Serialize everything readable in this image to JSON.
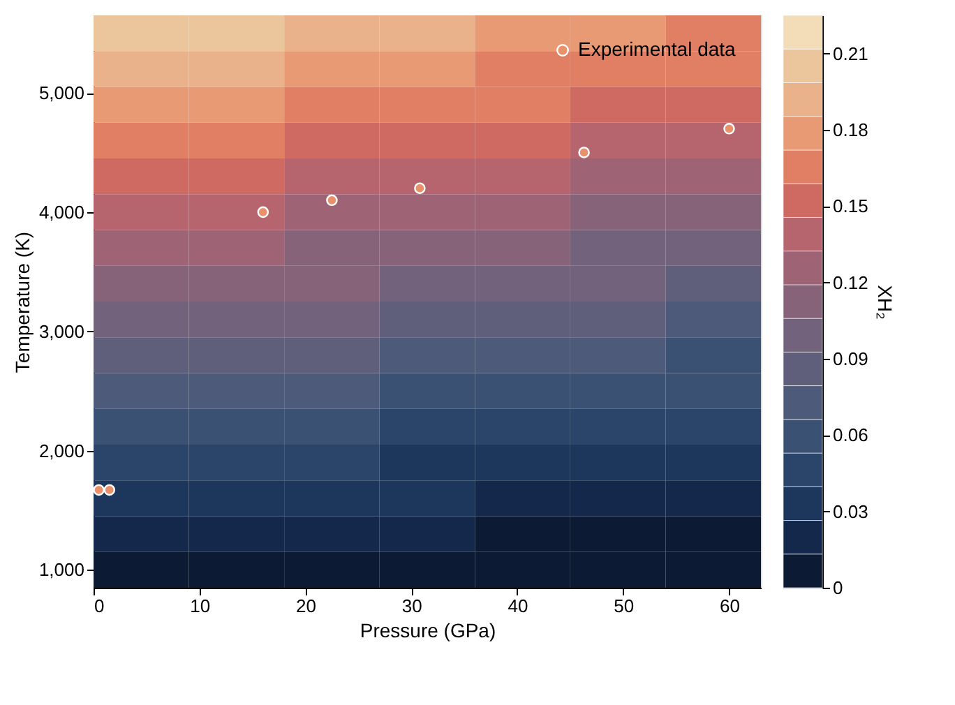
{
  "chart_data": {
    "type": "heatmap",
    "xlabel": "Pressure (GPa)",
    "ylabel": "Temperature (K)",
    "clabel": "XH₂",
    "x": [
      4.5,
      13.5,
      22.5,
      31.5,
      40.5,
      49.5,
      58.5
    ],
    "y": [
      5500,
      5200,
      4900,
      4600,
      4300,
      4000,
      3700,
      3400,
      3100,
      2800,
      2500,
      2200,
      1900,
      1600,
      1300,
      1000
    ],
    "cells": [
      [
        0.207,
        0.201,
        0.195,
        0.189,
        0.183,
        0.178,
        0.172
      ],
      [
        0.194,
        0.188,
        0.182,
        0.177,
        0.171,
        0.166,
        0.16
      ],
      [
        0.18,
        0.175,
        0.17,
        0.164,
        0.159,
        0.154,
        0.149
      ],
      [
        0.167,
        0.162,
        0.157,
        0.152,
        0.147,
        0.141,
        0.137
      ],
      [
        0.154,
        0.149,
        0.144,
        0.139,
        0.134,
        0.129,
        0.125
      ],
      [
        0.141,
        0.136,
        0.131,
        0.127,
        0.122,
        0.117,
        0.113
      ],
      [
        0.128,
        0.123,
        0.119,
        0.114,
        0.11,
        0.105,
        0.101
      ],
      [
        0.114,
        0.11,
        0.106,
        0.102,
        0.097,
        0.093,
        0.09
      ],
      [
        0.101,
        0.097,
        0.093,
        0.089,
        0.085,
        0.081,
        0.078
      ],
      [
        0.088,
        0.084,
        0.08,
        0.077,
        0.073,
        0.069,
        0.066
      ],
      [
        0.075,
        0.071,
        0.068,
        0.064,
        0.061,
        0.057,
        0.054
      ],
      [
        0.062,
        0.058,
        0.055,
        0.052,
        0.048,
        0.045,
        0.042
      ],
      [
        0.048,
        0.045,
        0.042,
        0.039,
        0.036,
        0.033,
        0.03
      ],
      [
        0.035,
        0.032,
        0.029,
        0.027,
        0.024,
        0.021,
        0.019
      ],
      [
        0.022,
        0.019,
        0.017,
        0.014,
        0.012,
        0.009,
        0.007
      ],
      [
        0.009,
        0.006,
        0.004,
        0.002,
        0.0,
        0.0,
        0.0
      ]
    ],
    "colors": [
      "#0c1b33",
      "#13284a",
      "#1d365c",
      "#2a4569",
      "#3b5174",
      "#4d5a7a",
      "#5f5f7c",
      "#72627b",
      "#87637a",
      "#9e6476",
      "#b6656f",
      "#cf6a62",
      "#e07f63",
      "#e89a74",
      "#eab28a",
      "#ebc59c",
      "#f3dcb8"
    ],
    "clim": [
      0,
      0.225
    ],
    "cticks": [
      0,
      0.03,
      0.06,
      0.09,
      0.12,
      0.15,
      0.18,
      0.21
    ],
    "xlim": [
      0,
      63
    ],
    "xticks": [
      0,
      10,
      20,
      30,
      40,
      50,
      60
    ],
    "ylim": [
      850,
      5650
    ],
    "yticks": [
      {
        "value": 1000,
        "label": "1,000"
      },
      {
        "value": 2000,
        "label": "2,000"
      },
      {
        "value": 3000,
        "label": "3,000"
      },
      {
        "value": 4000,
        "label": "4,000"
      },
      {
        "value": 5000,
        "label": "5,000"
      }
    ],
    "grid": false,
    "legend": "top right",
    "marker": "circle",
    "series": [
      {
        "type": "scatter",
        "name": "Experimental data",
        "color": "#e8916a",
        "x": [
          16,
          22.5,
          30.8,
          46.3,
          60
        ],
        "values": [
          4000,
          4100,
          4200,
          4500,
          4700
        ]
      },
      {
        "type": "scatter",
        "color": "#e8916a",
        "x": [
          0.5,
          1.5
        ],
        "values": [
          1670,
          1670
        ]
      }
    ]
  }
}
